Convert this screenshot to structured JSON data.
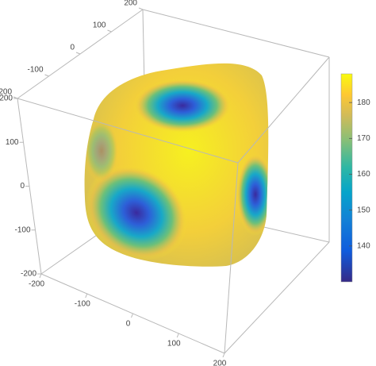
{
  "chart_data": {
    "type": "surface3d",
    "xlim": [
      -200,
      200
    ],
    "xticks": [
      -200,
      -100,
      0,
      100,
      200
    ],
    "ylim": [
      -200,
      200
    ],
    "yticks": [
      -200,
      -100,
      0,
      100,
      200
    ],
    "zlim": [
      -200,
      200
    ],
    "zticks": [
      -200,
      -100,
      0,
      100,
      200
    ],
    "box": true,
    "colorbar": {
      "lim": [
        130,
        188
      ],
      "ticks": [
        140,
        150,
        160,
        170,
        180
      ]
    }
  }
}
